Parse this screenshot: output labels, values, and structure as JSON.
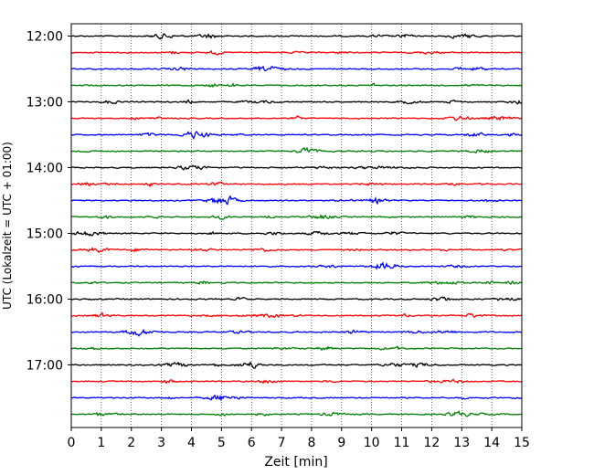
{
  "chart_data": {
    "type": "line",
    "title": "",
    "xlabel": "Zeit  [min]",
    "ylabel": "UTC (Lokalzeit = UTC + 01:00)",
    "xlim": [
      0,
      15
    ],
    "x_ticks": [
      "0",
      "1",
      "2",
      "3",
      "4",
      "5",
      "6",
      "7",
      "8",
      "9",
      "10",
      "11",
      "12",
      "13",
      "14",
      "15"
    ],
    "y_tick_labels": [
      "12:00",
      "13:00",
      "14:00",
      "15:00",
      "16:00",
      "17:00"
    ],
    "grid": "vertical dotted lines at each minute",
    "trace_colors": [
      "#000000",
      "#ff0000",
      "#0000ff",
      "#007f00"
    ],
    "trace_count": 24,
    "trace_interval_min": 15,
    "start_time": "12:00"
  }
}
